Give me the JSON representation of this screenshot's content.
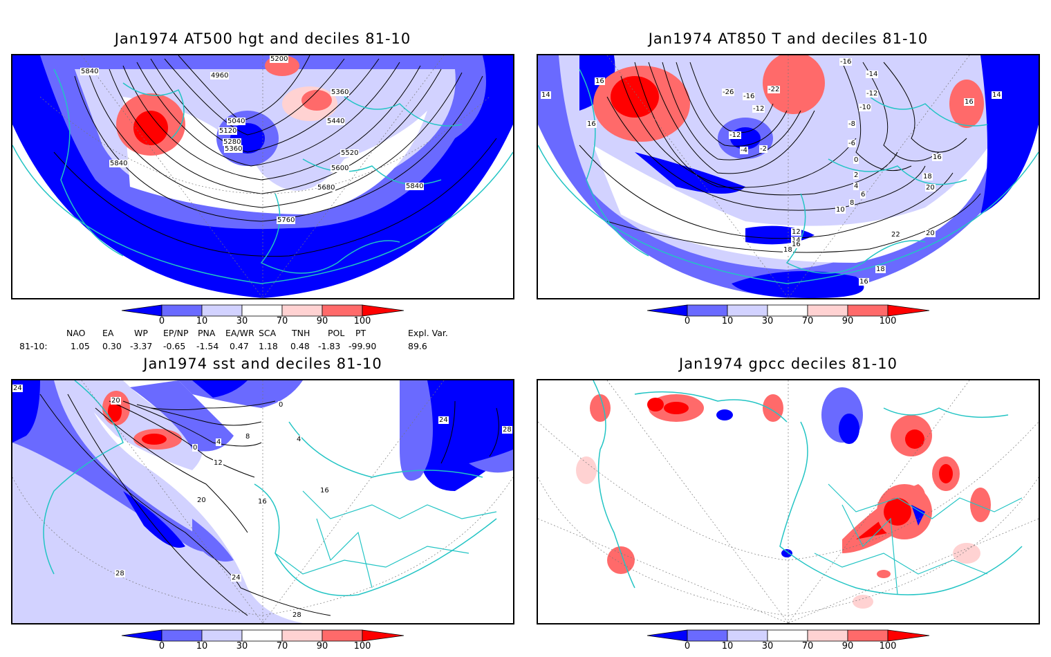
{
  "panels": [
    {
      "id": "p1",
      "title": "Jan1974 AT500 hgt and deciles 81-10",
      "contour_labels": [
        "5840",
        "4960",
        "5200",
        "5040",
        "5120",
        "5280",
        "5360",
        "5360",
        "5440",
        "5520",
        "5600",
        "5680",
        "5840",
        "5760",
        "5840"
      ]
    },
    {
      "id": "p2",
      "title": "Jan1974 AT850 T and deciles 81-10",
      "contour_labels": [
        "14",
        "16",
        "16",
        "-26",
        "-16",
        "-22",
        "-12",
        "-12",
        "-16",
        "-14",
        "-12",
        "-10",
        "-8",
        "-6",
        "-4",
        "-2",
        "0",
        "2",
        "4",
        "6",
        "8",
        "10",
        "12",
        "14",
        "16",
        "16",
        "18",
        "20",
        "22",
        "20",
        "18",
        "18",
        "16",
        "14",
        "16"
      ]
    },
    {
      "id": "p3",
      "title": "Jan1974 sst and deciles 81-10",
      "contour_labels": [
        "24",
        "20",
        "0",
        "4",
        "8",
        "12",
        "16",
        "20",
        "24",
        "28",
        "28",
        "16",
        "24",
        "28",
        "0",
        "4"
      ]
    },
    {
      "id": "p4",
      "title": "Jan1974 gpcc deciles 81-10",
      "contour_labels": []
    }
  ],
  "colorbar": {
    "ticks": [
      "0",
      "10",
      "30",
      "70",
      "90",
      "100"
    ],
    "colors": [
      "#0000ff",
      "#6a6aff",
      "#d2d2ff",
      "#ffffff",
      "#ffd2d2",
      "#ff6a6a",
      "#ff0000"
    ]
  },
  "indices": {
    "headers": [
      "NAO",
      "EA",
      "WP",
      "EP/NP",
      "PNA",
      "EA/WR",
      "SCA",
      "TNH",
      "POL",
      "PT",
      "Expl. Var."
    ],
    "row_label": "81-10:",
    "values": [
      "1.05",
      "0.30",
      "-3.37",
      "-0.65",
      "-1.54",
      "0.47",
      "1.18",
      "0.48",
      "-1.83",
      "-99.90",
      "89.6"
    ]
  },
  "colors": {
    "coast": "#22c4c4",
    "contour": "#000000",
    "grid": "#777777"
  }
}
